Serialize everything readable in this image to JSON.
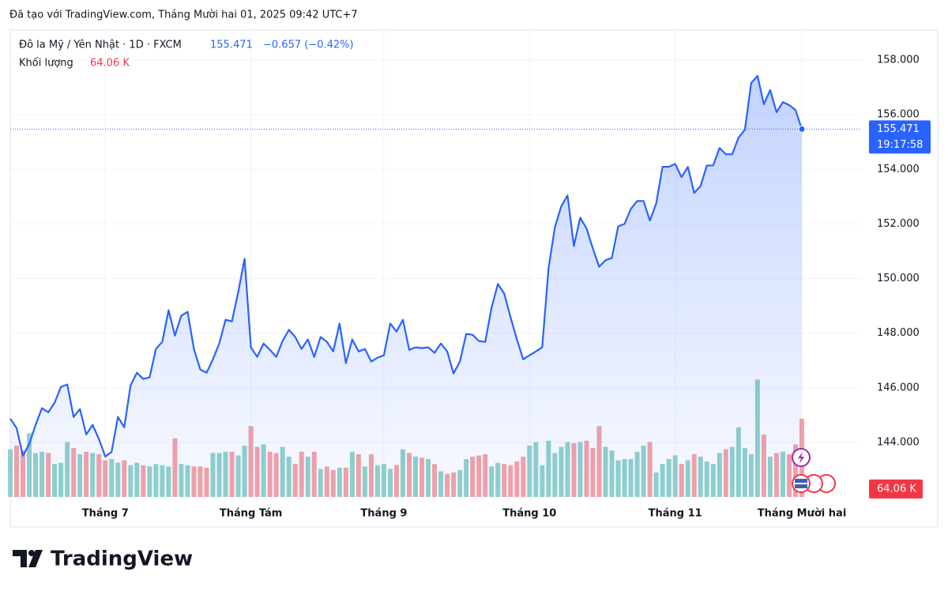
{
  "chart_data": {
    "type": "line",
    "caption": "Đã tạo với TradingView.com, Tháng Mười hai 01, 2025 09:42 UTC+7",
    "title": "Đô la Mỹ / Yên Nhật · 1D · FXCM",
    "change": "−0.657 (−0.42%)",
    "countdown": "19:17:58",
    "brand": "TradingView",
    "categories": [
      null,
      null,
      null,
      null,
      null,
      null,
      null,
      null,
      null,
      null,
      null,
      null,
      null,
      null,
      null,
      "Tháng 7",
      null,
      null,
      null,
      null,
      null,
      null,
      null,
      null,
      null,
      null,
      null,
      null,
      null,
      null,
      null,
      null,
      null,
      null,
      null,
      null,
      null,
      null,
      "Tháng Tám",
      null,
      null,
      null,
      null,
      null,
      null,
      null,
      null,
      null,
      null,
      null,
      null,
      null,
      null,
      null,
      null,
      null,
      null,
      null,
      null,
      "Tháng 9",
      null,
      null,
      null,
      null,
      null,
      null,
      null,
      null,
      null,
      null,
      null,
      null,
      null,
      null,
      null,
      null,
      null,
      null,
      null,
      null,
      null,
      null,
      "Tháng 10",
      null,
      null,
      null,
      null,
      null,
      null,
      null,
      null,
      null,
      null,
      null,
      null,
      null,
      null,
      null,
      null,
      null,
      null,
      null,
      null,
      null,
      null,
      "Tháng 11",
      null,
      null,
      null,
      null,
      null,
      null,
      null,
      null,
      null,
      null,
      null,
      null,
      null,
      null,
      null,
      null,
      null,
      null,
      null,
      "Tháng Mười hai"
    ],
    "series": [
      {
        "name": "Đô la Mỹ / Yên Nhật",
        "color": "#2962ff",
        "values": [
          144.87,
          144.52,
          143.51,
          143.94,
          144.64,
          145.25,
          145.1,
          145.45,
          146.03,
          146.12,
          144.93,
          145.22,
          144.29,
          144.64,
          144.12,
          143.48,
          143.65,
          144.93,
          144.55,
          146.09,
          146.55,
          146.32,
          146.38,
          147.42,
          147.68,
          148.84,
          147.91,
          148.64,
          148.78,
          147.42,
          146.67,
          146.55,
          147.04,
          147.62,
          148.49,
          148.43,
          149.51,
          150.72,
          147.48,
          147.13,
          147.62,
          147.39,
          147.13,
          147.71,
          148.12,
          147.86,
          147.42,
          147.77,
          147.13,
          147.86,
          147.68,
          147.33,
          148.35,
          146.9,
          147.77,
          147.33,
          147.42,
          146.96,
          147.1,
          147.19,
          148.35,
          148.06,
          148.49,
          147.39,
          147.48,
          147.45,
          147.48,
          147.28,
          147.62,
          147.33,
          146.52,
          146.96,
          147.97,
          147.94,
          147.71,
          147.68,
          148.93,
          149.8,
          149.45,
          148.58,
          147.77,
          147.04,
          147.19,
          147.33,
          147.48,
          150.38,
          151.88,
          152.64,
          153.04,
          151.19,
          152.23,
          151.83,
          151.1,
          150.43,
          150.67,
          150.75,
          151.91,
          152.0,
          152.55,
          152.84,
          152.84,
          152.12,
          152.75,
          154.09,
          154.09,
          154.2,
          153.71,
          154.09,
          153.13,
          153.39,
          154.14,
          154.14,
          154.78,
          154.55,
          154.55,
          155.16,
          155.45,
          157.16,
          157.42,
          156.38,
          156.9,
          156.09,
          156.46,
          156.35,
          156.17,
          155.471
        ]
      },
      {
        "name": "Khối lượng",
        "axis": "y2",
        "up_color": "#92d2ca",
        "down_color": "#f5a3a6",
        "values": [
          39,
          42,
          38,
          52,
          36,
          37,
          36,
          27,
          28,
          45,
          40,
          35,
          37,
          36,
          35,
          30,
          31,
          28,
          30,
          26,
          28,
          26,
          25,
          27,
          26,
          25,
          48,
          27,
          26,
          25,
          25,
          24,
          36,
          36,
          37,
          37,
          34,
          42,
          58,
          41,
          43,
          37,
          36,
          41,
          33,
          27,
          37,
          33,
          37,
          23,
          25,
          22,
          24,
          24,
          37,
          35,
          25,
          35,
          26,
          27,
          23,
          26,
          39,
          36,
          33,
          32,
          31,
          27,
          21,
          19,
          20,
          22,
          31,
          33,
          34,
          35,
          25,
          28,
          27,
          26,
          29,
          33,
          42,
          45,
          26,
          46,
          36,
          41,
          45,
          44,
          45,
          46,
          40,
          58,
          41,
          38,
          30,
          31,
          31,
          37,
          42,
          45,
          20,
          27,
          31,
          34,
          27,
          30,
          35,
          33,
          29,
          27,
          36,
          39,
          41,
          57,
          40,
          35,
          96,
          51,
          33,
          36,
          37,
          35,
          43,
          64.06
        ]
      }
    ],
    "ylim": [
      142,
      159.1
    ],
    "yticks": [
      {
        "value": 144,
        "label": "144.000"
      },
      {
        "value": 146,
        "label": "146.000"
      },
      {
        "value": 148,
        "label": "148.000"
      },
      {
        "value": 150,
        "label": "150.000"
      },
      {
        "value": 152,
        "label": "152.000"
      },
      {
        "value": 154,
        "label": "154.000"
      },
      {
        "value": 156,
        "label": "156.000"
      },
      {
        "value": 158,
        "label": "158.000"
      }
    ],
    "y2lim": [
      0,
      382
    ],
    "y2ticks": [
      {
        "value": 64.06,
        "label": "64.06 K"
      }
    ],
    "grid": true
  }
}
